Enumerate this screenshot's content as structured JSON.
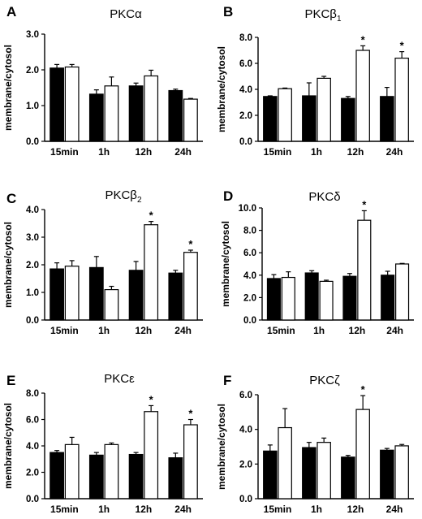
{
  "chart_data": [
    {
      "type": "bar",
      "panel": "A",
      "title": "PKCα",
      "sub": "",
      "ylabel": "membrane/cytosol",
      "categories": [
        "15min",
        "1h",
        "12h",
        "24h"
      ],
      "ylim": [
        0,
        3
      ],
      "yticks": [
        "0.0",
        "1.0",
        "2.0",
        "3.0"
      ],
      "series": [
        {
          "color": "#000000",
          "values": [
            2.05,
            1.32,
            1.55,
            1.42
          ],
          "errors": [
            0.1,
            0.12,
            0.08,
            0.04
          ]
        },
        {
          "color": "#ffffff",
          "values": [
            2.08,
            1.55,
            1.83,
            1.18
          ],
          "errors": [
            0.07,
            0.25,
            0.16,
            0.02
          ]
        }
      ],
      "stars": [
        0,
        0,
        0,
        0
      ],
      "star_label": "*"
    },
    {
      "type": "bar",
      "panel": "B",
      "title": "PKCβ",
      "sub": "1",
      "ylabel": "membrane/cytosol",
      "categories": [
        "15min",
        "1h",
        "12h",
        "24h"
      ],
      "ylim": [
        0,
        8
      ],
      "yticks": [
        "0.0",
        "2.0",
        "4.0",
        "6.0",
        "8.0"
      ],
      "series": [
        {
          "color": "#000000",
          "values": [
            3.45,
            3.5,
            3.3,
            3.45
          ],
          "errors": [
            0.05,
            1.0,
            0.15,
            0.7
          ]
        },
        {
          "color": "#ffffff",
          "values": [
            4.05,
            4.85,
            7.0,
            6.4
          ],
          "errors": [
            0.05,
            0.15,
            0.35,
            0.5
          ]
        }
      ],
      "stars": [
        0,
        0,
        1,
        1
      ],
      "star_label": "*"
    },
    {
      "type": "bar",
      "panel": "C",
      "title": "PKCβ",
      "sub": "2",
      "ylabel": "membrane/cytosol",
      "categories": [
        "15min",
        "1h",
        "12h",
        "24h"
      ],
      "ylim": [
        0,
        4
      ],
      "yticks": [
        "0.0",
        "1.0",
        "2.0",
        "3.0",
        "4.0"
      ],
      "series": [
        {
          "color": "#000000",
          "values": [
            1.85,
            1.9,
            1.8,
            1.7
          ],
          "errors": [
            0.22,
            0.4,
            0.32,
            0.1
          ]
        },
        {
          "color": "#ffffff",
          "values": [
            1.95,
            1.1,
            3.45,
            2.45
          ],
          "errors": [
            0.2,
            0.12,
            0.12,
            0.08
          ]
        }
      ],
      "stars": [
        0,
        0,
        1,
        1
      ],
      "star_label": "*"
    },
    {
      "type": "bar",
      "panel": "D",
      "title": "PKCδ",
      "sub": "",
      "ylabel": "membrane/cytosol",
      "categories": [
        "15min",
        "1h",
        "12h",
        "24h"
      ],
      "ylim": [
        0,
        10
      ],
      "yticks": [
        "0.0",
        "2.0",
        "4.0",
        "6.0",
        "8.0",
        "10.0"
      ],
      "series": [
        {
          "color": "#000000",
          "values": [
            3.7,
            4.2,
            3.9,
            4.0
          ],
          "errors": [
            0.35,
            0.2,
            0.25,
            0.35
          ]
        },
        {
          "color": "#ffffff",
          "values": [
            3.8,
            3.45,
            8.9,
            5.0
          ],
          "errors": [
            0.5,
            0.1,
            0.85,
            0.05
          ]
        }
      ],
      "stars": [
        0,
        0,
        1,
        0
      ],
      "star_label": "*"
    },
    {
      "type": "bar",
      "panel": "E",
      "title": "PKCε",
      "sub": "",
      "ylabel": "membrane/cytosol",
      "categories": [
        "15min",
        "1h",
        "12h",
        "24h"
      ],
      "ylim": [
        0,
        8
      ],
      "yticks": [
        "0.0",
        "2.0",
        "4.0",
        "6.0",
        "8.0"
      ],
      "series": [
        {
          "color": "#000000",
          "values": [
            3.5,
            3.3,
            3.35,
            3.1
          ],
          "errors": [
            0.15,
            0.2,
            0.15,
            0.35
          ]
        },
        {
          "color": "#ffffff",
          "values": [
            4.1,
            4.1,
            6.6,
            5.6
          ],
          "errors": [
            0.55,
            0.12,
            0.45,
            0.4
          ]
        }
      ],
      "stars": [
        0,
        0,
        1,
        1
      ],
      "star_label": "*"
    },
    {
      "type": "bar",
      "panel": "F",
      "title": "PKCζ",
      "sub": "",
      "ylabel": "membrane/cytosol",
      "categories": [
        "15min",
        "1h",
        "12h",
        "24h"
      ],
      "ylim": [
        0,
        6
      ],
      "yticks": [
        "0.0",
        "2.0",
        "4.0",
        "6.0"
      ],
      "series": [
        {
          "color": "#000000",
          "values": [
            2.75,
            2.95,
            2.4,
            2.8
          ],
          "errors": [
            0.35,
            0.3,
            0.1,
            0.1
          ]
        },
        {
          "color": "#ffffff",
          "values": [
            4.1,
            3.25,
            5.15,
            3.05
          ],
          "errors": [
            1.1,
            0.25,
            0.8,
            0.08
          ]
        }
      ],
      "stars": [
        0,
        0,
        1,
        0
      ],
      "star_label": "*"
    }
  ]
}
